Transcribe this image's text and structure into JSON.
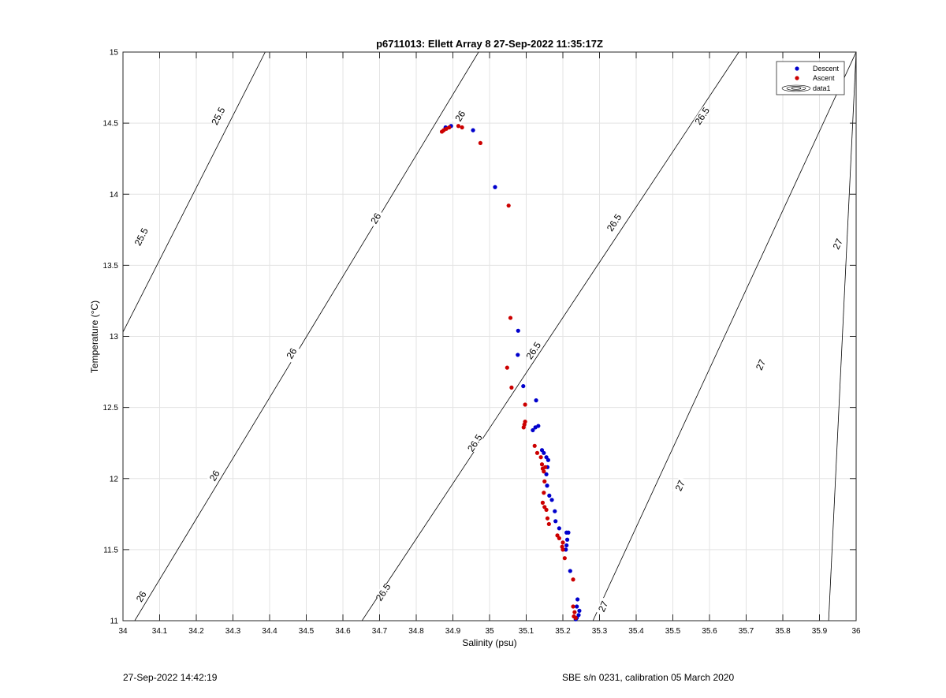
{
  "chart_data": {
    "type": "scatter",
    "title": "p6711013: Ellett Array 8 27-Sep-2022 11:35:17Z",
    "xlabel": "Salinity (psu)",
    "ylabel": "Temperature (°C)",
    "xlim": [
      34,
      36
    ],
    "ylim": [
      11,
      15
    ],
    "x_ticks": [
      "34",
      "34.1",
      "34.2",
      "34.3",
      "34.4",
      "34.5",
      "34.6",
      "34.7",
      "34.8",
      "34.9",
      "35",
      "35.1",
      "35.2",
      "35.3",
      "35.4",
      "35.5",
      "35.6",
      "35.7",
      "35.8",
      "35.9",
      "36"
    ],
    "y_ticks": [
      "11",
      "11.5",
      "12",
      "12.5",
      "13",
      "13.5",
      "14",
      "14.5",
      "15"
    ],
    "grid": true,
    "legend": {
      "placement": "top-right",
      "entries": [
        {
          "label": "Descent",
          "color": "#0000cc"
        },
        {
          "label": "Ascent",
          "color": "#cc0000"
        },
        {
          "label": "data1",
          "color": "#000000"
        }
      ]
    },
    "isopycnals": [
      {
        "label": "25.5",
        "x_at_ymin": 33.6,
        "x_at_ymax": 34.388,
        "label_points": [
          [
            34.26,
            14.55
          ],
          [
            34.05,
            13.7
          ]
        ]
      },
      {
        "label": "26",
        "x_at_ymin": 34.032,
        "x_at_ymax": 34.97,
        "label_points": [
          [
            34.05,
            11.17
          ],
          [
            34.25,
            12.02
          ],
          [
            34.46,
            12.88
          ],
          [
            34.69,
            13.83
          ],
          [
            34.92,
            14.55
          ]
        ]
      },
      {
        "label": "26.5",
        "x_at_ymin": 34.652,
        "x_at_ymax": 35.68,
        "label_points": [
          [
            34.71,
            11.2
          ],
          [
            34.96,
            12.25
          ],
          [
            35.12,
            12.9
          ],
          [
            35.34,
            13.8
          ],
          [
            35.58,
            14.55
          ]
        ]
      },
      {
        "label": "27",
        "x_at_ymin": 35.282,
        "x_at_ymax": 36.0,
        "label_points": [
          [
            35.31,
            11.1
          ],
          [
            35.52,
            11.95
          ],
          [
            35.74,
            12.8
          ],
          [
            35.95,
            13.65
          ]
        ]
      },
      {
        "label": "",
        "x_at_ymin": 35.925,
        "x_at_ymax": 36.0,
        "label_points": []
      }
    ],
    "series": [
      {
        "name": "Descent",
        "color": "#0000cc",
        "points": [
          [
            34.88,
            14.47
          ],
          [
            34.895,
            14.48
          ],
          [
            34.955,
            14.45
          ],
          [
            35.015,
            14.05
          ],
          [
            35.078,
            13.04
          ],
          [
            35.077,
            12.87
          ],
          [
            35.092,
            12.65
          ],
          [
            35.127,
            12.55
          ],
          [
            35.118,
            12.34
          ],
          [
            35.125,
            12.36
          ],
          [
            35.133,
            12.37
          ],
          [
            35.143,
            12.2
          ],
          [
            35.148,
            12.18
          ],
          [
            35.155,
            12.15
          ],
          [
            35.16,
            12.13
          ],
          [
            35.158,
            12.08
          ],
          [
            35.155,
            12.03
          ],
          [
            35.157,
            11.95
          ],
          [
            35.163,
            11.88
          ],
          [
            35.17,
            11.85
          ],
          [
            35.178,
            11.77
          ],
          [
            35.18,
            11.7
          ],
          [
            35.19,
            11.65
          ],
          [
            35.21,
            11.62
          ],
          [
            35.215,
            11.62
          ],
          [
            35.212,
            11.57
          ],
          [
            35.21,
            11.53
          ],
          [
            35.208,
            11.5
          ],
          [
            35.22,
            11.35
          ],
          [
            35.24,
            11.15
          ],
          [
            35.238,
            11.1
          ],
          [
            35.245,
            11.07
          ],
          [
            35.243,
            11.04
          ],
          [
            35.238,
            11.02
          ],
          [
            35.235,
            11.01
          ]
        ]
      },
      {
        "name": "Ascent",
        "color": "#cc0000",
        "points": [
          [
            34.87,
            14.44
          ],
          [
            34.875,
            14.45
          ],
          [
            34.882,
            14.46
          ],
          [
            34.89,
            14.47
          ],
          [
            34.915,
            14.48
          ],
          [
            34.925,
            14.47
          ],
          [
            34.975,
            14.36
          ],
          [
            35.052,
            13.92
          ],
          [
            35.057,
            13.13
          ],
          [
            35.048,
            12.78
          ],
          [
            35.06,
            12.64
          ],
          [
            35.097,
            12.52
          ],
          [
            35.097,
            12.4
          ],
          [
            35.095,
            12.38
          ],
          [
            35.093,
            12.36
          ],
          [
            35.123,
            12.23
          ],
          [
            35.13,
            12.18
          ],
          [
            35.14,
            12.15
          ],
          [
            35.143,
            12.1
          ],
          [
            35.145,
            12.07
          ],
          [
            35.148,
            12.05
          ],
          [
            35.152,
            12.08
          ],
          [
            35.15,
            11.98
          ],
          [
            35.148,
            11.9
          ],
          [
            35.145,
            11.83
          ],
          [
            35.15,
            11.8
          ],
          [
            35.155,
            11.78
          ],
          [
            35.158,
            11.72
          ],
          [
            35.162,
            11.68
          ],
          [
            35.185,
            11.6
          ],
          [
            35.19,
            11.58
          ],
          [
            35.2,
            11.55
          ],
          [
            35.198,
            11.52
          ],
          [
            35.2,
            11.5
          ],
          [
            35.205,
            11.44
          ],
          [
            35.228,
            11.29
          ],
          [
            35.228,
            11.1
          ],
          [
            35.232,
            11.06
          ],
          [
            35.23,
            11.03
          ],
          [
            35.235,
            11.02
          ]
        ]
      }
    ]
  },
  "footer": {
    "timestamp": "27-Sep-2022 14:42:19",
    "instrument": "SBE s/n 0231, calibration 05 March 2020"
  }
}
